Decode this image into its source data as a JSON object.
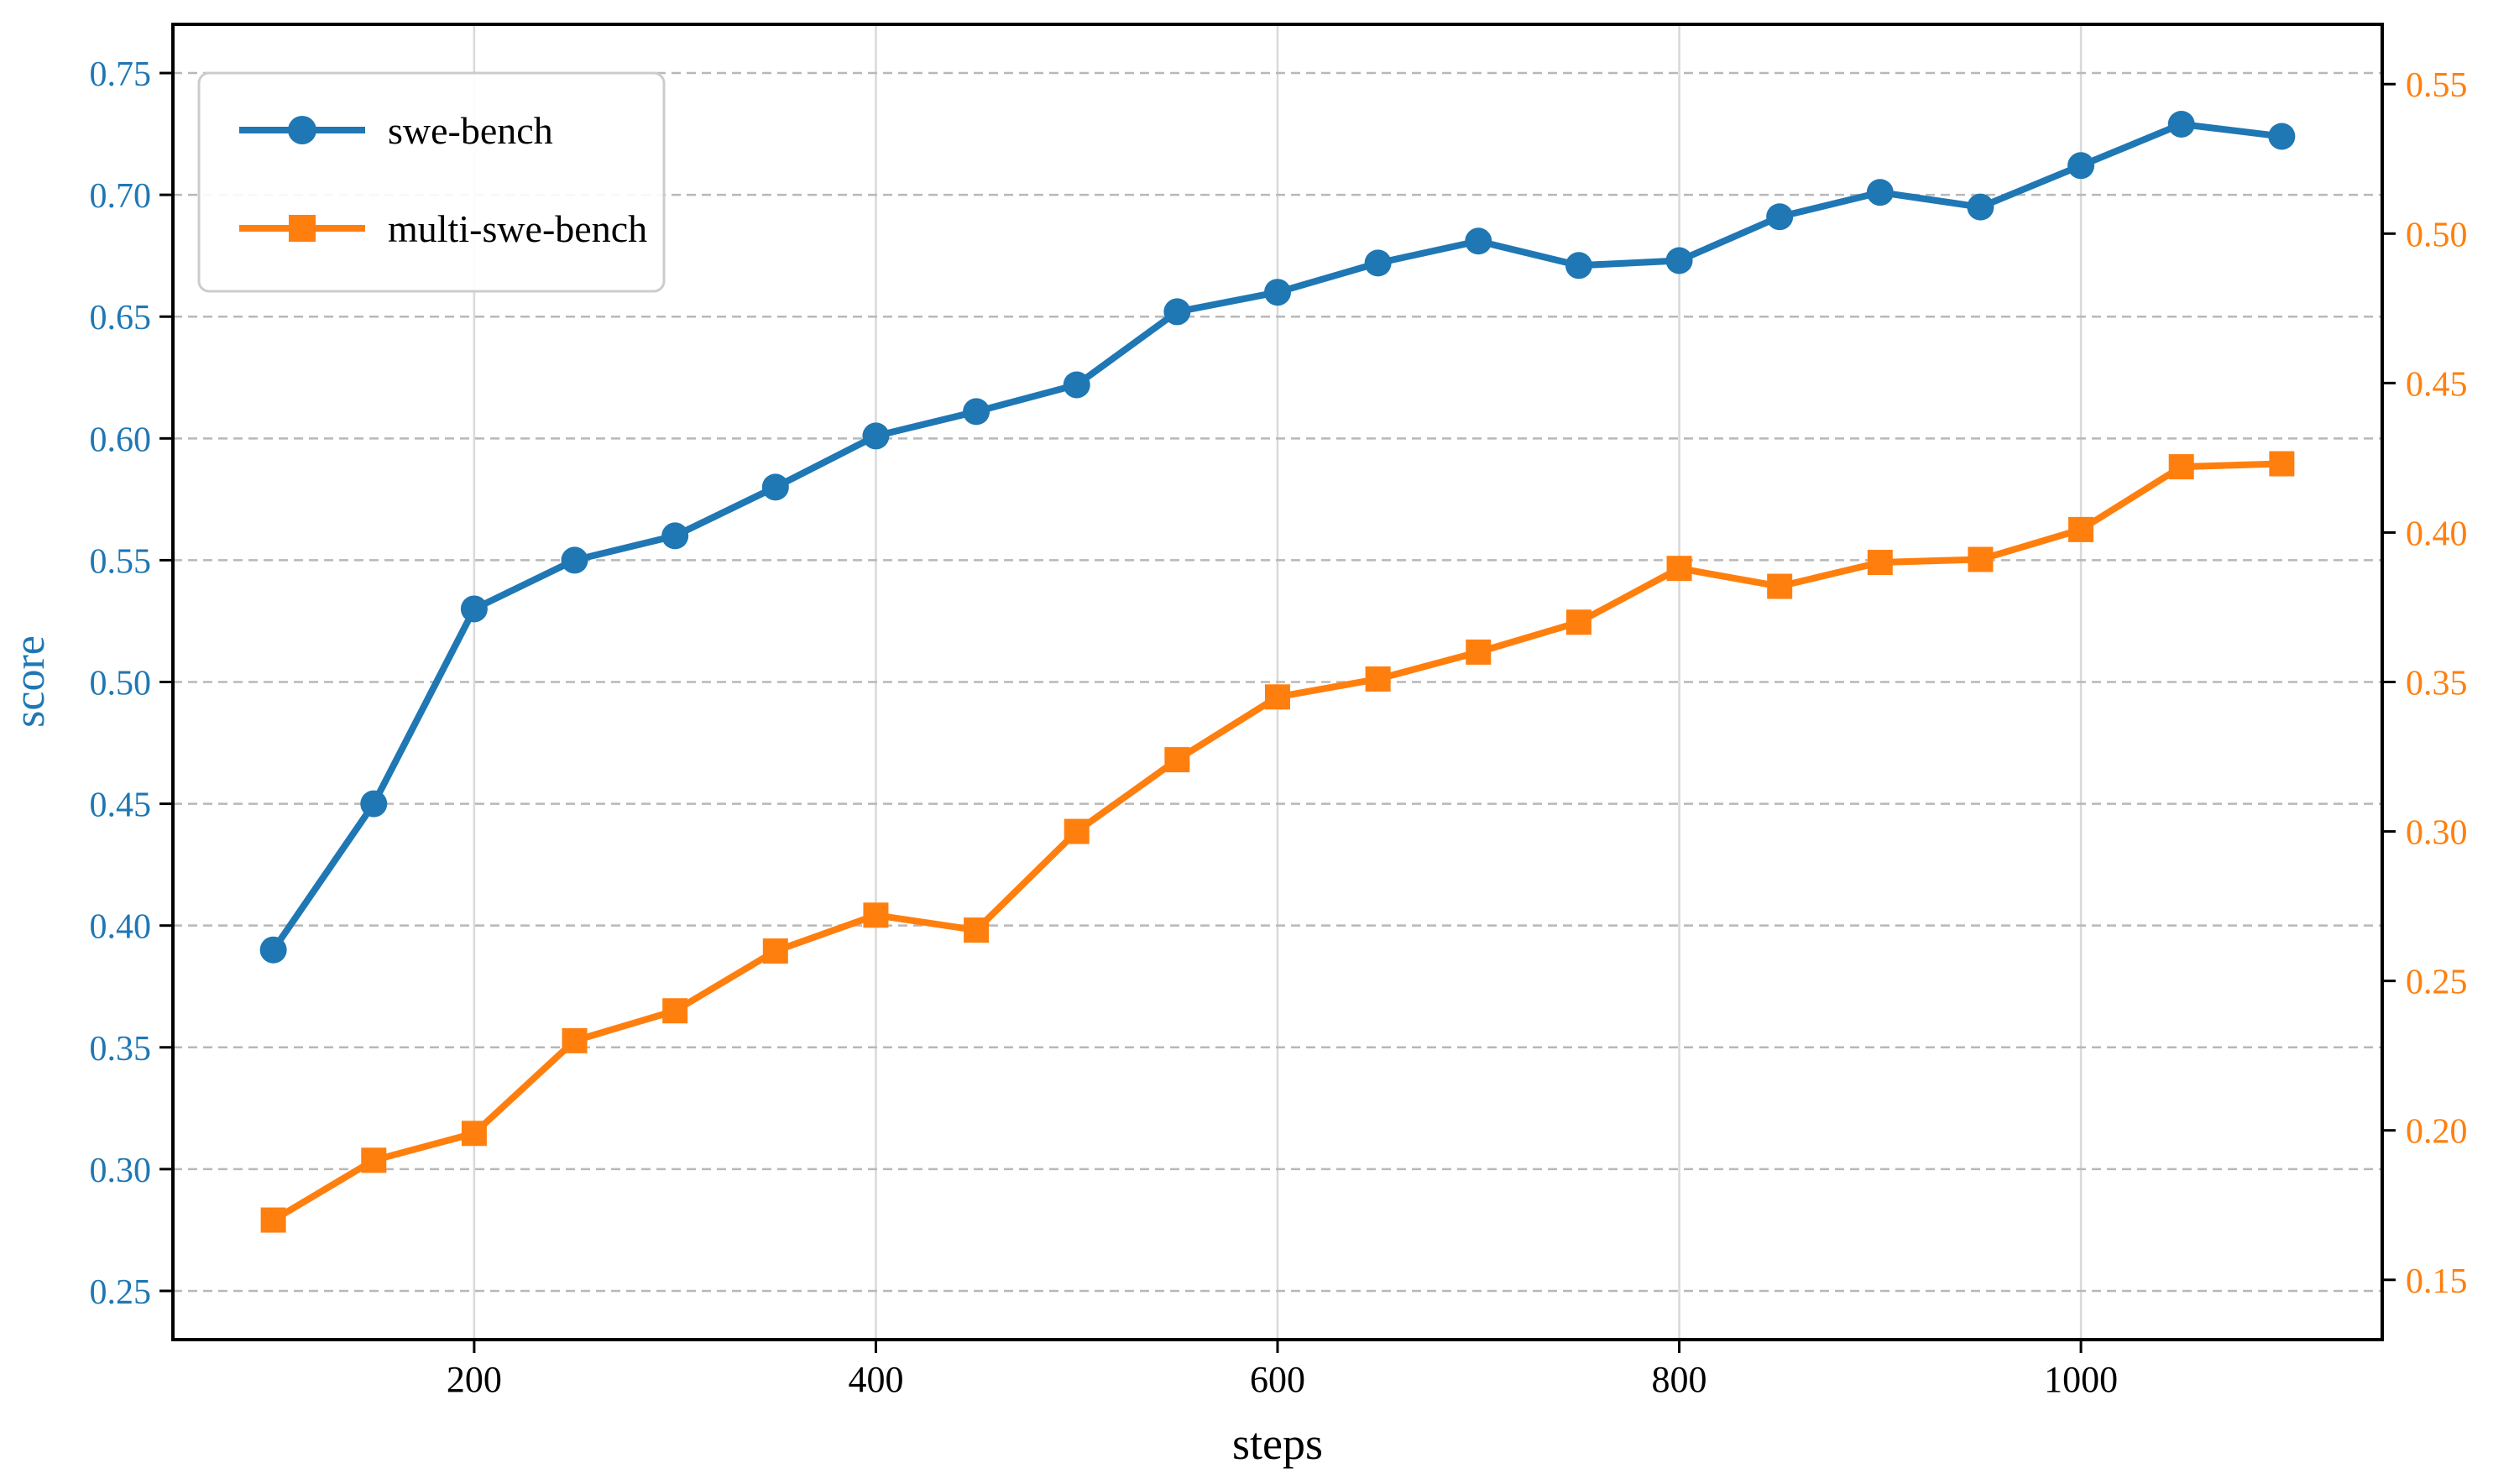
{
  "figure": {
    "background": "#ffffff"
  },
  "chart_data": {
    "type": "line",
    "title": "",
    "xlabel": "steps",
    "xlim": [
      50,
      1150
    ],
    "x_ticks": [
      200,
      400,
      600,
      800,
      1000
    ],
    "x": [
      100,
      150,
      200,
      250,
      300,
      350,
      400,
      450,
      500,
      550,
      600,
      650,
      700,
      750,
      800,
      850,
      900,
      950,
      1000,
      1050,
      1100
    ],
    "axes": {
      "left": {
        "label": "score",
        "color": "#1f77b4",
        "lim": [
          0.23,
          0.77
        ],
        "tick_labels": [
          "0.25",
          "0.30",
          "0.35",
          "0.40",
          "0.45",
          "0.50",
          "0.55",
          "0.60",
          "0.65",
          "0.70",
          "0.75"
        ],
        "tick_values": [
          0.25,
          0.3,
          0.35,
          0.4,
          0.45,
          0.5,
          0.55,
          0.6,
          0.65,
          0.7,
          0.75
        ]
      },
      "right": {
        "label": "",
        "color": "#ff7f0e",
        "lim": [
          0.13,
          0.57
        ],
        "tick_labels": [
          "0.15",
          "0.20",
          "0.25",
          "0.30",
          "0.35",
          "0.40",
          "0.45",
          "0.50",
          "0.55"
        ],
        "tick_values": [
          0.15,
          0.2,
          0.25,
          0.3,
          0.35,
          0.4,
          0.45,
          0.5,
          0.55
        ]
      }
    },
    "series": [
      {
        "name": "swe-bench",
        "axis": "left",
        "color": "#1f77b4",
        "marker": "circle",
        "values": [
          0.39,
          0.45,
          0.53,
          0.55,
          0.56,
          0.58,
          0.601,
          0.611,
          0.622,
          0.652,
          0.66,
          0.672,
          0.681,
          0.671,
          0.673,
          0.691,
          0.701,
          0.695,
          0.712,
          0.729,
          0.724
        ]
      },
      {
        "name": "multi-swe-bench",
        "axis": "right",
        "color": "#ff7f0e",
        "marker": "square",
        "values": [
          0.17,
          0.19,
          0.199,
          0.23,
          0.24,
          0.26,
          0.272,
          0.267,
          0.3,
          0.324,
          0.345,
          0.351,
          0.36,
          0.37,
          0.388,
          0.382,
          0.39,
          0.391,
          0.401,
          0.422,
          0.423
        ]
      }
    ],
    "legend": {
      "position": "top-left",
      "entries": [
        "swe-bench",
        "multi-swe-bench"
      ]
    },
    "grid": {
      "horizontal": "dashed",
      "vertical": "solid",
      "h_color": "#b8b8b8",
      "v_color": "#d9d9d9"
    },
    "spine_color": "#000000"
  }
}
